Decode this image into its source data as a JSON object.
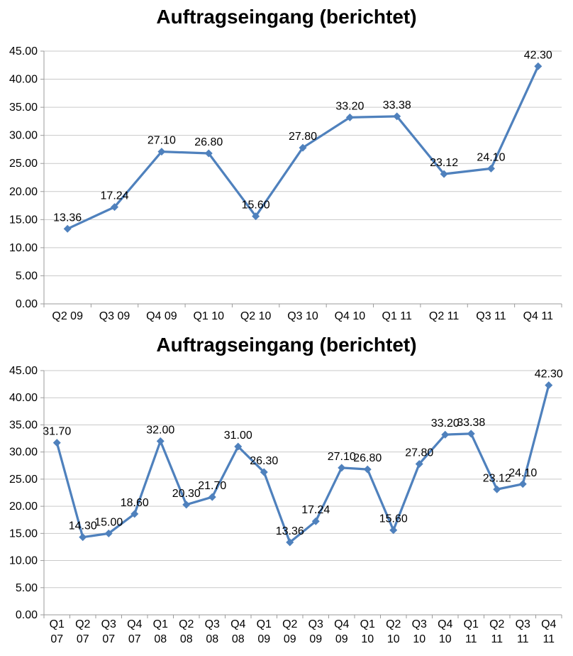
{
  "colors": {
    "line": "#4F81BD",
    "grid": "#C9C9C9",
    "axis": "#9B9B9B",
    "text": "#000000",
    "background": "#ffffff"
  },
  "chart_data": [
    {
      "type": "line",
      "title": "Auftragseingang (berichtet)",
      "categories": [
        "Q2 09",
        "Q3 09",
        "Q4 09",
        "Q1 10",
        "Q2 10",
        "Q3 10",
        "Q4 10",
        "Q1 11",
        "Q2 11",
        "Q3 11",
        "Q4 11"
      ],
      "values": [
        13.36,
        17.24,
        27.1,
        26.8,
        15.6,
        27.8,
        33.2,
        33.38,
        23.12,
        24.1,
        42.3
      ],
      "xlabel": "",
      "ylabel": "",
      "ylim": [
        0,
        45
      ],
      "ytick_step": 5,
      "grid": true,
      "legend": false,
      "marker": "diamond",
      "data_labels": true,
      "xlabel_two_line": false
    },
    {
      "type": "line",
      "title": "Auftragseingang (berichtet)",
      "categories": [
        "Q1 07",
        "Q2 07",
        "Q3 07",
        "Q4 07",
        "Q1 08",
        "Q2 08",
        "Q3 08",
        "Q4 08",
        "Q1 09",
        "Q2 09",
        "Q3 09",
        "Q4 09",
        "Q1 10",
        "Q2 10",
        "Q3 10",
        "Q4 10",
        "Q1 11",
        "Q2 11",
        "Q3 11",
        "Q4 11"
      ],
      "values": [
        31.7,
        14.3,
        15.0,
        18.6,
        32.0,
        20.3,
        21.7,
        31.0,
        26.3,
        13.36,
        17.24,
        27.1,
        26.8,
        15.6,
        27.8,
        33.2,
        33.38,
        23.12,
        24.1,
        42.3
      ],
      "xlabel": "",
      "ylabel": "",
      "ylim": [
        0,
        45
      ],
      "ytick_step": 5,
      "grid": true,
      "legend": false,
      "marker": "diamond",
      "data_labels": true,
      "xlabel_two_line": true
    }
  ]
}
